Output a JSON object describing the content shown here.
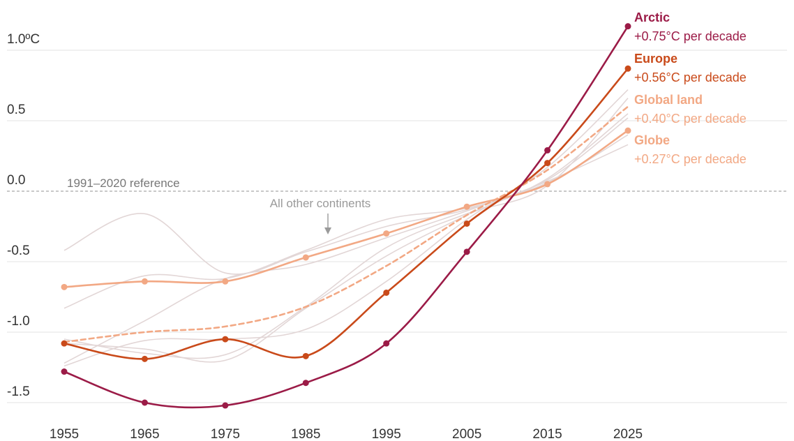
{
  "chart_data": {
    "type": "line",
    "title": "",
    "xlabel": "",
    "ylabel": "",
    "x": [
      1955,
      1965,
      1975,
      1985,
      1995,
      2005,
      2015,
      2025
    ],
    "xlim": [
      1955,
      2025
    ],
    "ylim": [
      -1.5,
      1.0
    ],
    "x_ticks": [
      "1955",
      "1965",
      "1975",
      "1985",
      "1995",
      "2005",
      "2015",
      "2025"
    ],
    "y_ticks": [
      {
        "value": 1.0,
        "label": "1.0ºC"
      },
      {
        "value": 0.5,
        "label": "0.5"
      },
      {
        "value": 0.0,
        "label": "0.0"
      },
      {
        "value": -0.5,
        "label": "-0.5"
      },
      {
        "value": -1.0,
        "label": "-1.0"
      },
      {
        "value": -1.5,
        "label": "-1.5"
      }
    ],
    "grid": true,
    "reference_line": {
      "value": 0.0,
      "label": "1991–2020 reference"
    },
    "series": [
      {
        "name": "Arctic",
        "rate": "+0.75°C per decade",
        "color": "#9b1b47",
        "values": [
          -1.28,
          -1.5,
          -1.52,
          -1.36,
          -1.08,
          -0.43,
          0.29,
          1.17
        ]
      },
      {
        "name": "Europe",
        "rate": "+0.56°C per decade",
        "color": "#c94a1a",
        "values": [
          -1.08,
          -1.19,
          -1.05,
          -1.17,
          -0.72,
          -0.23,
          0.2,
          0.87
        ]
      },
      {
        "name": "Global land",
        "rate": "+0.40°C per decade",
        "color": "#f2a884",
        "dashed": true,
        "values": [
          -1.07,
          -1.0,
          -0.96,
          -0.82,
          -0.53,
          -0.17,
          0.15,
          0.6
        ]
      },
      {
        "name": "Globe",
        "rate": "+0.27°C per decade",
        "color": "#f2a884",
        "values": [
          -0.68,
          -0.64,
          -0.64,
          -0.47,
          -0.3,
          -0.11,
          0.05,
          0.43
        ]
      }
    ],
    "background_series_label": "All other continents",
    "background_series": [
      {
        "values": [
          -0.42,
          -0.16,
          -0.58,
          -0.43,
          -0.25,
          -0.13,
          0.08,
          0.52
        ]
      },
      {
        "values": [
          -0.83,
          -0.6,
          -0.62,
          -0.42,
          -0.2,
          -0.12,
          0.06,
          0.4
        ]
      },
      {
        "values": [
          -1.22,
          -0.92,
          -0.62,
          -0.52,
          -0.33,
          -0.14,
          0.07,
          0.33
        ]
      },
      {
        "values": [
          -1.08,
          -1.12,
          -1.2,
          -0.83,
          -0.46,
          -0.17,
          0.09,
          0.55
        ]
      },
      {
        "values": [
          -1.24,
          -1.06,
          -1.05,
          -0.98,
          -0.64,
          -0.2,
          0.17,
          0.72
        ]
      },
      {
        "values": [
          -1.05,
          -1.15,
          -1.16,
          -0.82,
          -0.4,
          -0.16,
          0.04,
          0.66
        ]
      }
    ]
  }
}
